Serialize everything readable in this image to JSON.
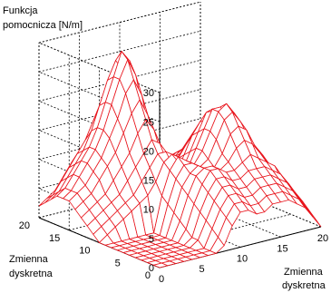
{
  "chart_data": {
    "type": "surface",
    "title": "",
    "zlabel_lines": [
      "Funkcja",
      "pomocnicza [N/m]"
    ],
    "ylabel_lines": [
      "Zmienna",
      "dyskretna"
    ],
    "xlabel_lines": [
      "Zmienna",
      "dyskretna"
    ],
    "zlim": [
      0,
      30
    ],
    "xlim": [
      0,
      20
    ],
    "ylim": [
      0,
      20
    ],
    "z_ticks": [
      "0",
      "5",
      "10",
      "15",
      "20",
      "25",
      "30"
    ],
    "x_ticks": [
      "0",
      "5",
      "10",
      "15",
      "20"
    ],
    "y_ticks": [
      "0",
      "5",
      "10",
      "15",
      "20"
    ],
    "grid": true,
    "surface_color": "#e8141c",
    "grid_color": "#000000",
    "z_rows": [
      [
        0,
        0,
        0,
        0,
        0,
        0,
        0,
        0,
        1,
        4,
        6,
        6,
        5,
        5,
        6,
        6,
        6,
        5,
        4,
        2,
        0
      ],
      [
        0,
        0,
        0,
        0,
        0,
        0,
        0,
        0,
        2,
        5,
        7,
        7,
        6,
        6,
        7,
        7,
        7,
        6,
        5,
        3,
        1
      ],
      [
        0,
        0,
        0,
        0,
        0,
        0,
        0,
        0,
        3,
        6,
        8,
        8,
        7,
        7,
        8,
        8,
        8,
        7,
        6,
        4,
        2
      ],
      [
        0,
        0,
        0,
        0,
        0,
        0,
        0,
        1,
        4,
        7,
        9,
        9,
        8,
        8,
        9,
        9,
        9,
        8,
        7,
        5,
        3
      ],
      [
        0,
        0,
        0,
        0,
        0,
        0,
        0,
        1,
        5,
        8,
        10,
        10,
        9,
        9,
        10,
        10,
        10,
        9,
        8,
        6,
        3
      ],
      [
        0,
        0,
        0,
        0,
        0,
        0,
        0,
        2,
        6,
        9,
        11,
        11,
        10,
        10,
        11,
        12,
        11,
        10,
        9,
        6,
        4
      ],
      [
        0,
        0,
        0,
        0,
        0,
        0,
        0,
        3,
        7,
        10,
        11,
        11,
        10,
        11,
        13,
        14,
        13,
        11,
        9,
        7,
        4
      ],
      [
        0,
        0,
        0,
        0,
        0,
        0,
        0,
        4,
        8,
        10,
        11,
        10,
        10,
        12,
        15,
        16,
        15,
        12,
        10,
        7,
        5
      ],
      [
        0,
        0,
        0,
        0,
        0,
        0,
        0,
        5,
        9,
        11,
        11,
        10,
        11,
        14,
        17,
        18,
        16,
        13,
        10,
        8,
        5
      ],
      [
        0,
        0,
        0,
        0,
        0,
        0,
        0,
        6,
        10,
        12,
        11,
        10,
        12,
        15,
        18,
        19,
        17,
        13,
        11,
        8,
        5
      ],
      [
        0,
        1,
        2,
        3,
        4,
        5,
        6,
        8,
        11,
        12,
        10,
        9,
        12,
        15,
        18,
        18,
        16,
        13,
        10,
        8,
        5
      ],
      [
        1,
        2,
        3,
        4,
        5,
        6,
        8,
        10,
        12,
        12,
        9,
        8,
        11,
        14,
        17,
        17,
        15,
        12,
        9,
        7,
        4
      ],
      [
        2,
        3,
        4,
        5,
        6,
        8,
        10,
        12,
        14,
        13,
        9,
        7,
        10,
        13,
        15,
        15,
        13,
        11,
        8,
        6,
        4
      ],
      [
        3,
        4,
        5,
        6,
        8,
        10,
        12,
        15,
        17,
        15,
        10,
        6,
        9,
        11,
        13,
        13,
        11,
        9,
        7,
        5,
        3
      ],
      [
        4,
        5,
        6,
        8,
        10,
        12,
        15,
        18,
        20,
        17,
        11,
        6,
        7,
        9,
        11,
        11,
        9,
        7,
        6,
        4,
        3
      ],
      [
        5,
        6,
        7,
        9,
        11,
        14,
        17,
        21,
        23,
        20,
        13,
        7,
        6,
        8,
        9,
        9,
        8,
        6,
        5,
        4,
        2
      ],
      [
        5,
        6,
        8,
        10,
        12,
        15,
        19,
        23,
        26,
        23,
        16,
        9,
        6,
        7,
        8,
        8,
        7,
        5,
        4,
        3,
        2
      ],
      [
        5,
        6,
        8,
        10,
        12,
        15,
        19,
        23,
        27,
        25,
        18,
        11,
        7,
        6,
        7,
        7,
        6,
        5,
        4,
        3,
        2
      ],
      [
        4,
        5,
        7,
        9,
        11,
        14,
        18,
        22,
        25,
        23,
        17,
        11,
        7,
        5,
        6,
        6,
        5,
        4,
        3,
        2,
        1
      ],
      [
        3,
        4,
        6,
        8,
        10,
        12,
        15,
        18,
        20,
        19,
        14,
        9,
        6,
        4,
        5,
        5,
        4,
        3,
        2,
        2,
        1
      ],
      [
        2,
        3,
        4,
        6,
        8,
        9,
        11,
        13,
        14,
        13,
        10,
        7,
        5,
        3,
        4,
        4,
        3,
        2,
        2,
        1,
        1
      ]
    ]
  }
}
